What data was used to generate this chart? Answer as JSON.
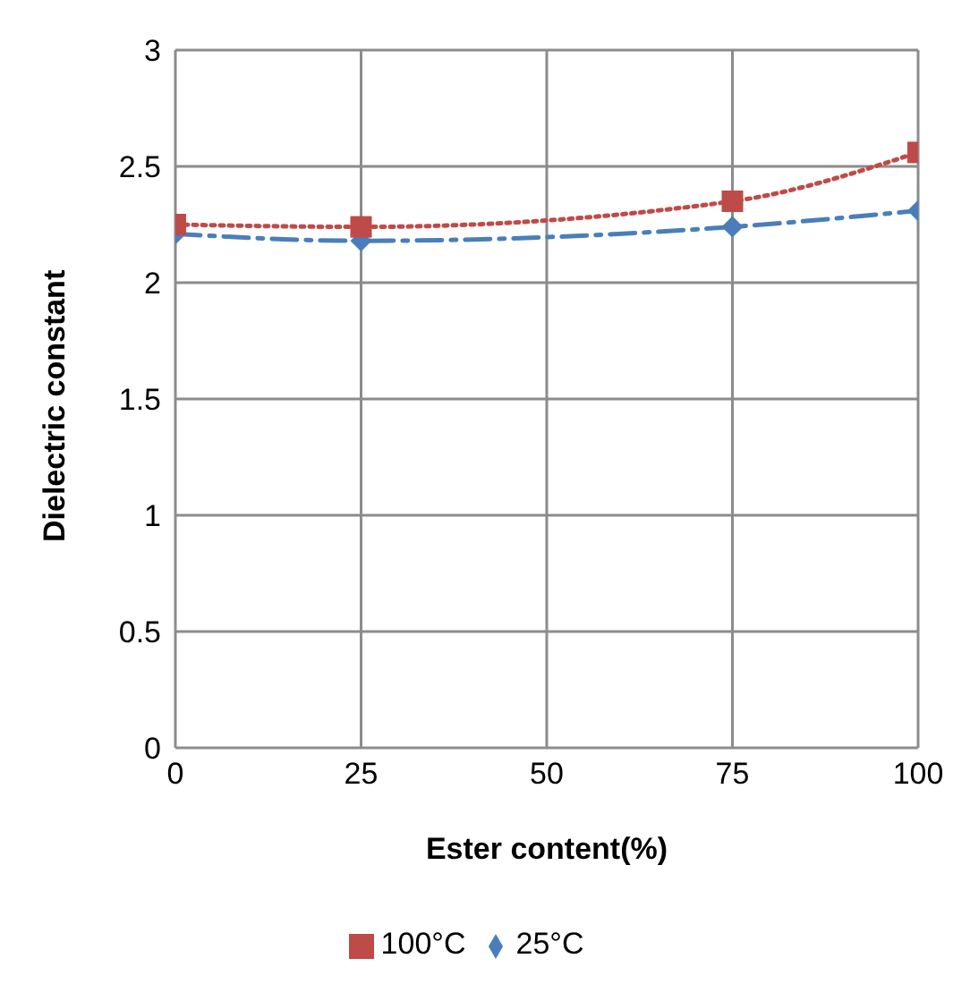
{
  "chart_data": {
    "type": "line",
    "xlabel": "Ester content(%)",
    "ylabel": "Dielectric constant",
    "x": [
      0,
      25,
      75,
      100
    ],
    "series": [
      {
        "name": "25°C",
        "color": "#4a7ebb",
        "values": [
          2.21,
          2.18,
          2.24,
          2.31
        ],
        "marker": "diamond",
        "line_style": "dashed"
      },
      {
        "name": "100°C",
        "color": "#be4b48",
        "values": [
          2.25,
          2.24,
          2.35,
          2.56
        ],
        "marker": "square",
        "line_style": "dotted"
      }
    ],
    "xlim": [
      0,
      100
    ],
    "xticks": [
      0,
      25,
      50,
      75,
      100
    ],
    "ylim": [
      0,
      3
    ],
    "yticks": [
      0,
      0.5,
      1,
      1.5,
      2,
      2.5,
      3
    ],
    "grid": true,
    "legend": "bottom"
  }
}
